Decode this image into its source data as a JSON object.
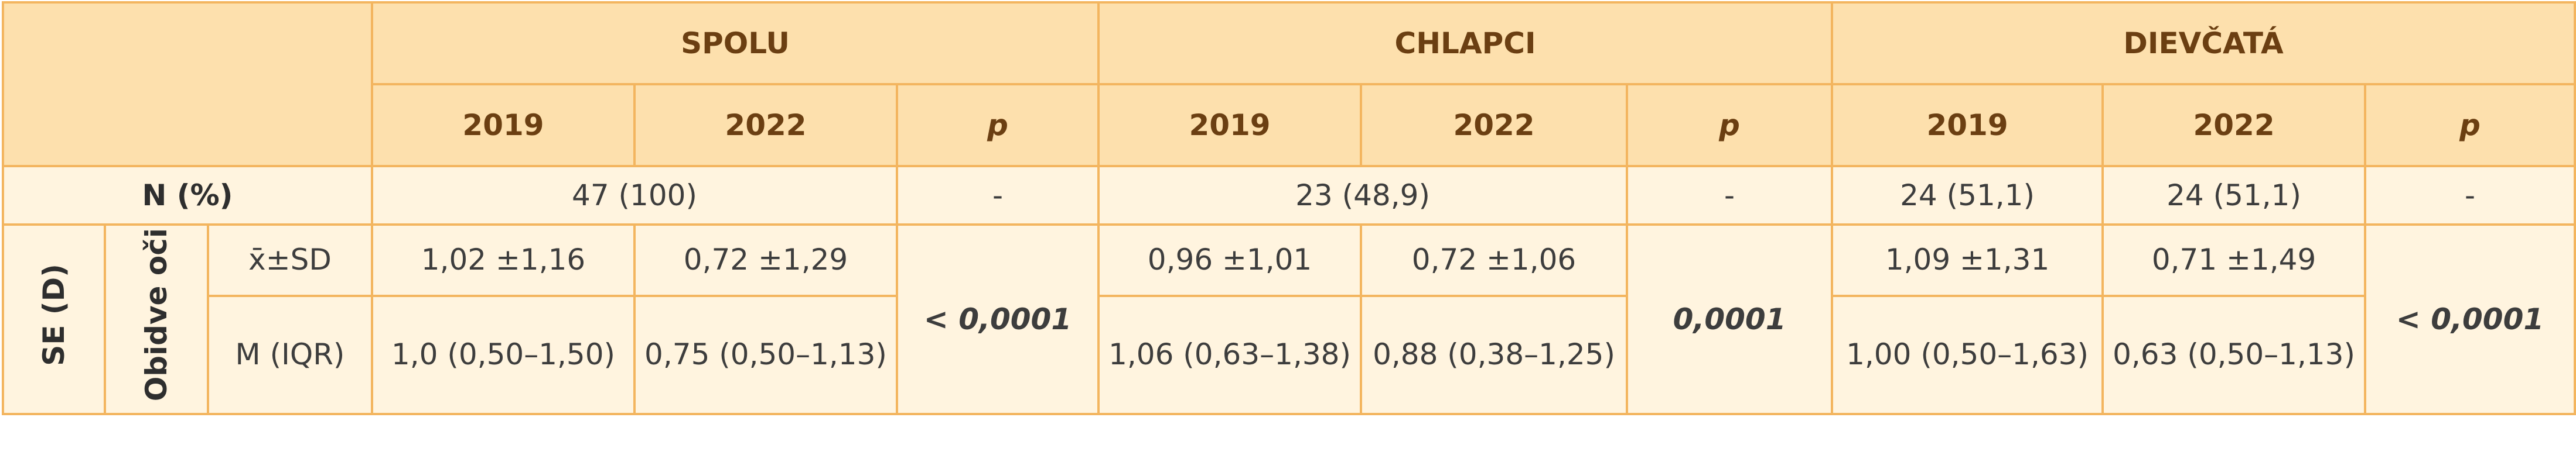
{
  "table": {
    "groups": [
      "SPOLU",
      "CHLAPCI",
      "DIEVČATÁ"
    ],
    "subheaders": [
      "2019",
      "2022",
      "p",
      "2019",
      "2022",
      "p",
      "2019",
      "2022",
      "p"
    ],
    "n_row": {
      "label": "N (%)",
      "cells": [
        "47 (100)",
        "-",
        "23 (48,9)",
        "-",
        "24 (51,1)",
        "24 (51,1)",
        "-"
      ]
    },
    "se_block": {
      "label": "SE (D)",
      "sublabel": "Obidve oči",
      "rows": [
        {
          "label": "x̄±SD",
          "cells": [
            "1,02 ±1,16",
            "0,72 ±1,29",
            "0,96 ±1,01",
            "0,72 ±1,06",
            "1,09 ±1,31",
            "0,71 ±1,49"
          ]
        },
        {
          "label": "M (IQR)",
          "cells": [
            "1,0 (0,50–1,50)",
            "0,75 (0,50–1,13)",
            "1,06 (0,63–1,38)",
            "0,88 (0,38–1,25)",
            "1,00 (0,50–1,63)",
            "0,63 (0,50–1,13)"
          ]
        }
      ],
      "p_values": [
        "< 0,0001",
        "0,0001",
        "< 0,0001"
      ]
    }
  }
}
